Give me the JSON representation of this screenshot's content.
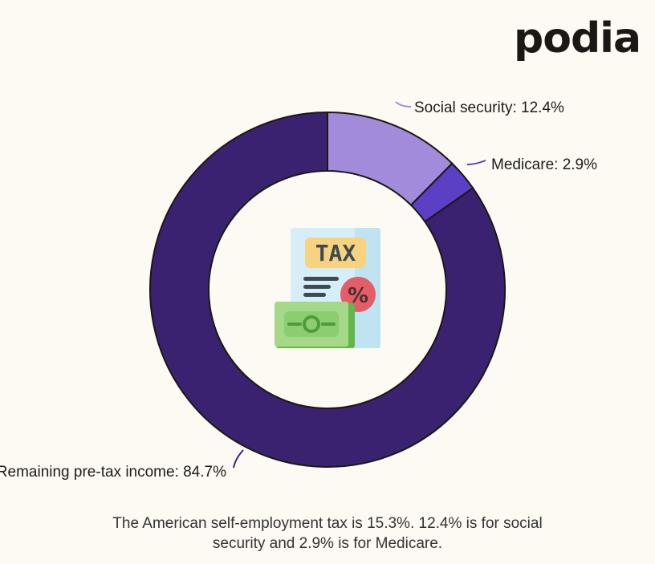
{
  "brand": {
    "logo_text": "podia"
  },
  "chart_data": {
    "type": "pie",
    "style": "donut",
    "slices": [
      {
        "label": "Social security: 12.4%",
        "value": 12.4,
        "color": "#a38bdc"
      },
      {
        "label": "Medicare: 2.9%",
        "value": 2.9,
        "color": "#5b3fc4"
      },
      {
        "label": "Remaining pre-tax income: 84.7%",
        "value": 84.7,
        "color": "#3a2270"
      }
    ],
    "center_icon": "tax-document-icon",
    "center_icon_text": "TAX",
    "center_icon_badge": "%"
  },
  "caption": {
    "line1": "The American self-employment tax is 15.3%. 12.4% is for social",
    "line2": "security and 2.9% is for Medicare."
  }
}
